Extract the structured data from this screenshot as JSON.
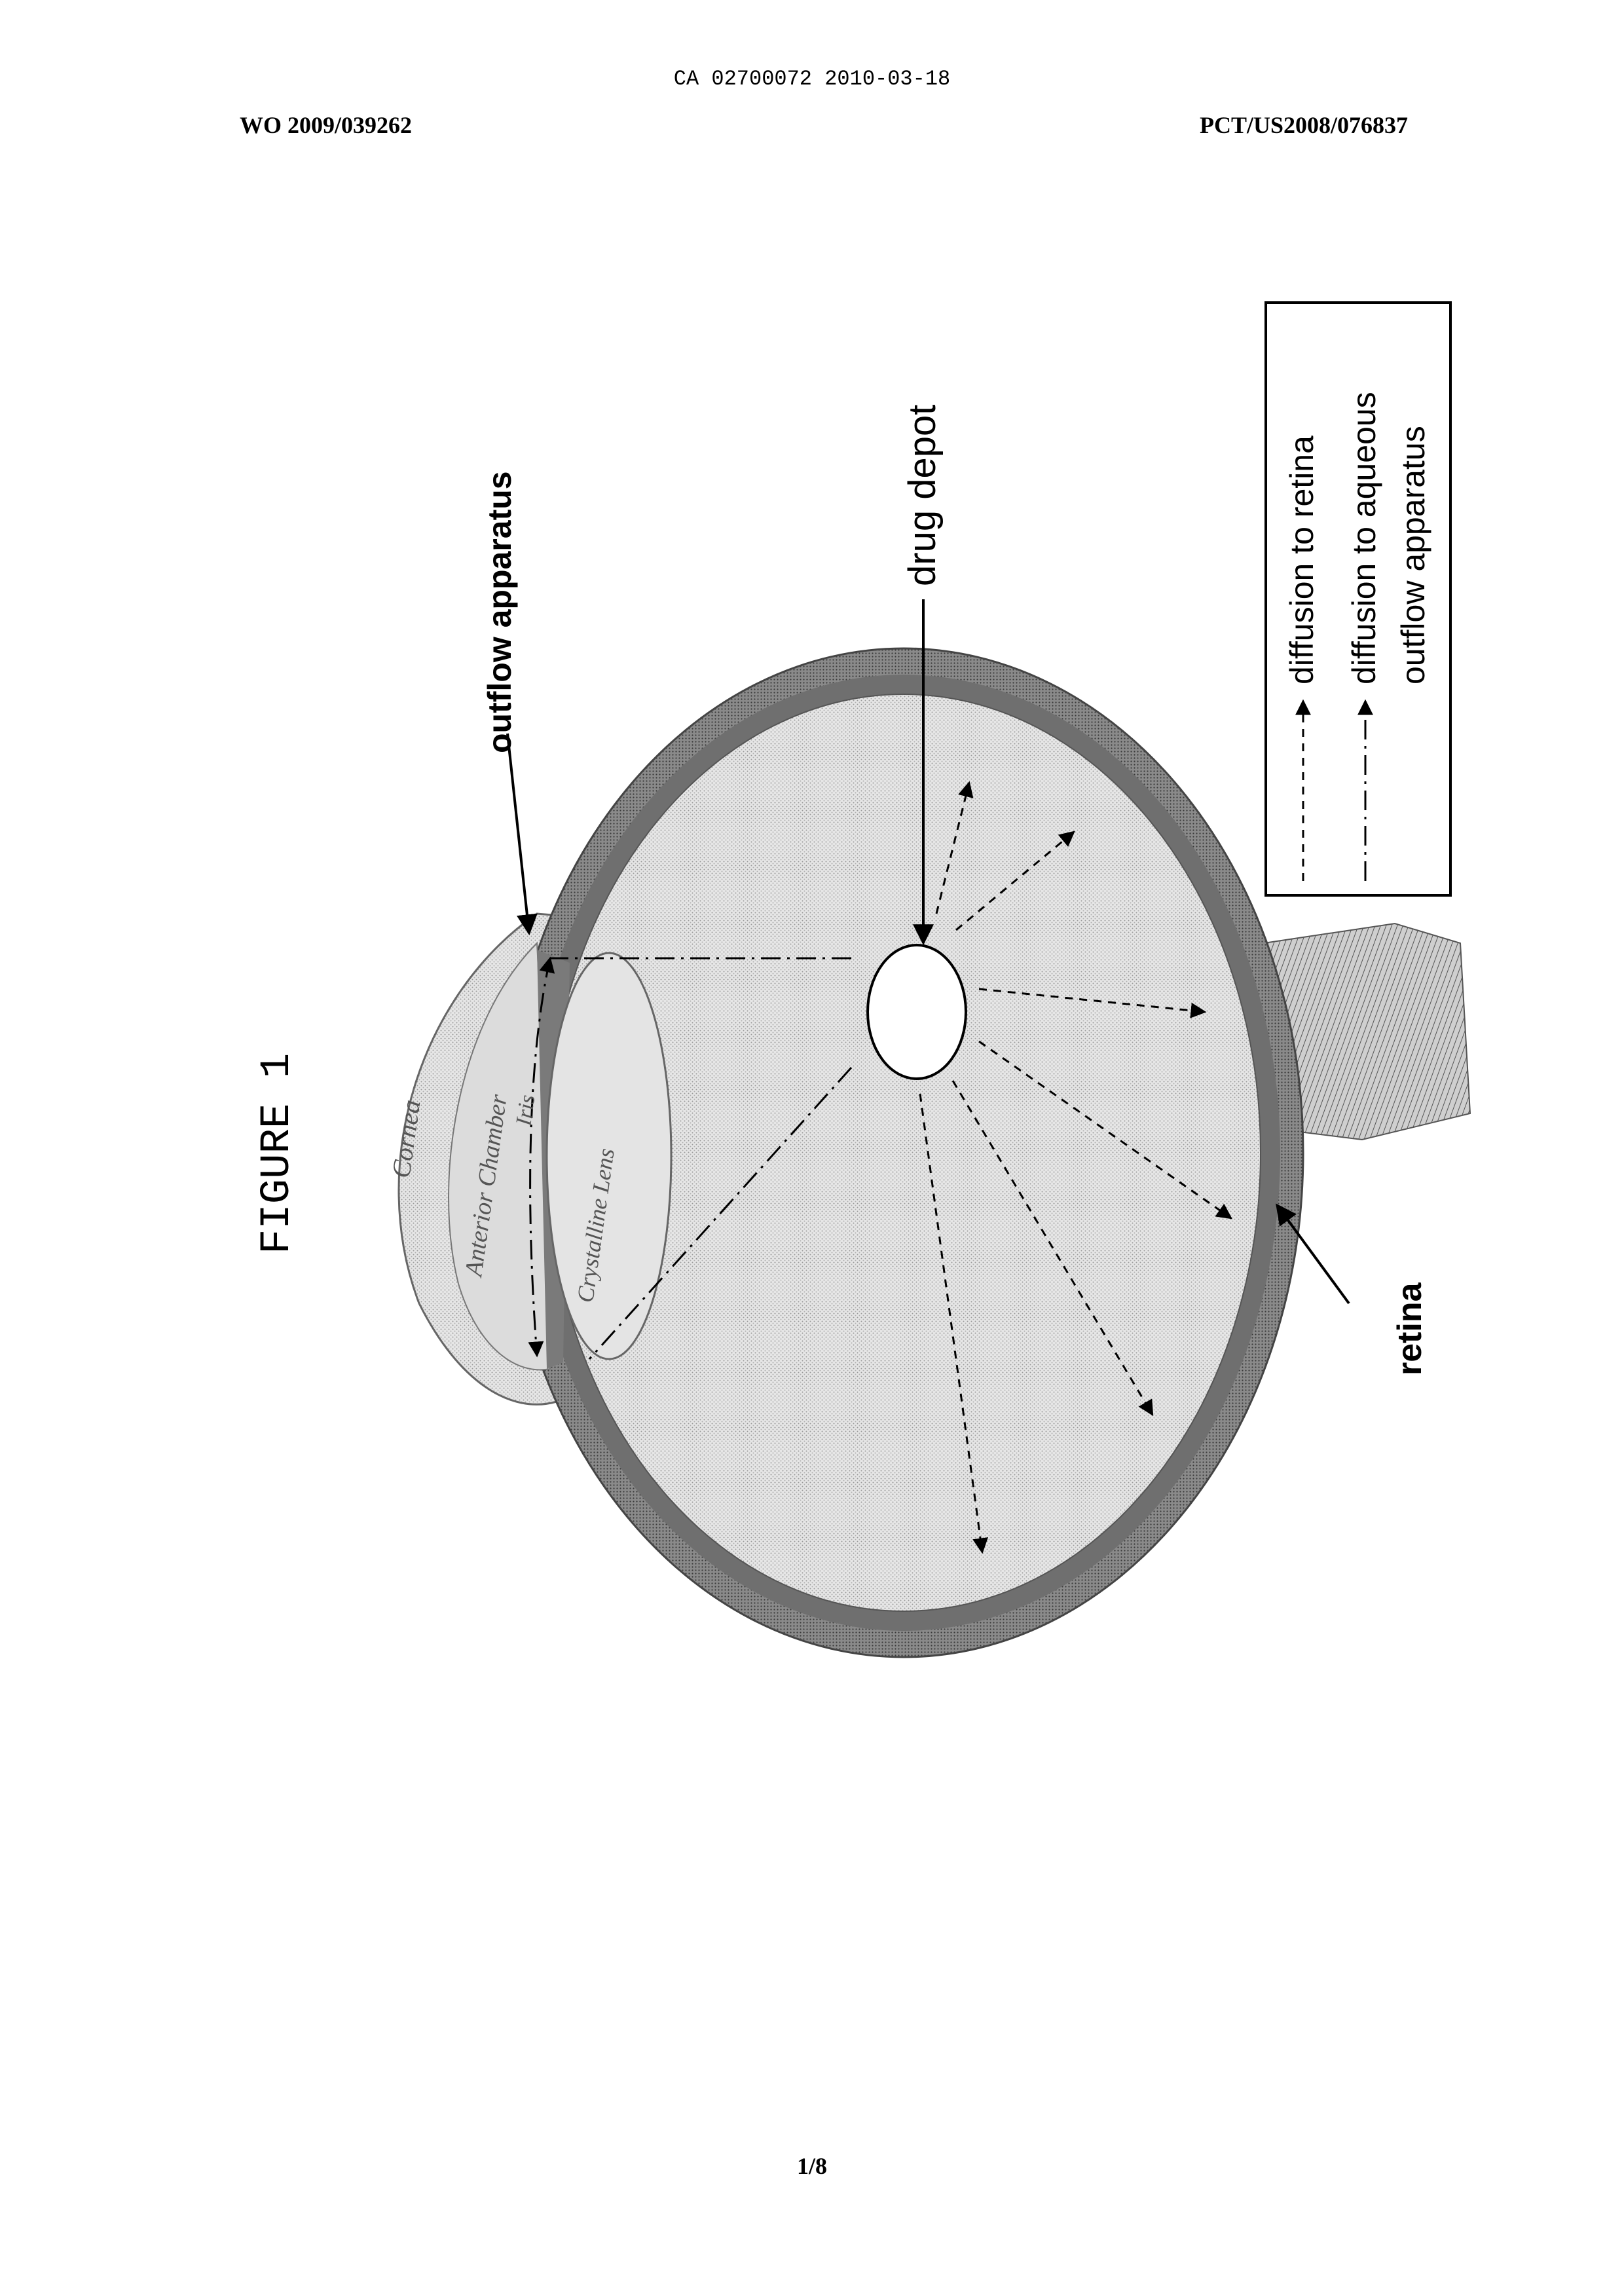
{
  "header": {
    "ca_number": "CA 02700072 2010-03-18",
    "wo_number": "WO 2009/039262",
    "pct_number": "PCT/US2008/076837"
  },
  "figure": {
    "title": "FIGURE 1",
    "labels": {
      "outflow": "outflow apparatus",
      "drug_depot": "drug depot",
      "retina": "retina",
      "cornea": "Cornea",
      "anterior_chamber": "Anterior Chamber",
      "iris": "Iris",
      "lens": "Crystalline Lens"
    },
    "legend": {
      "retina_entry": "diffusion to retina",
      "aqueous_line1": "diffusion to aqueous",
      "aqueous_line2": "outflow apparatus"
    }
  },
  "footer": {
    "page": "1/8"
  }
}
